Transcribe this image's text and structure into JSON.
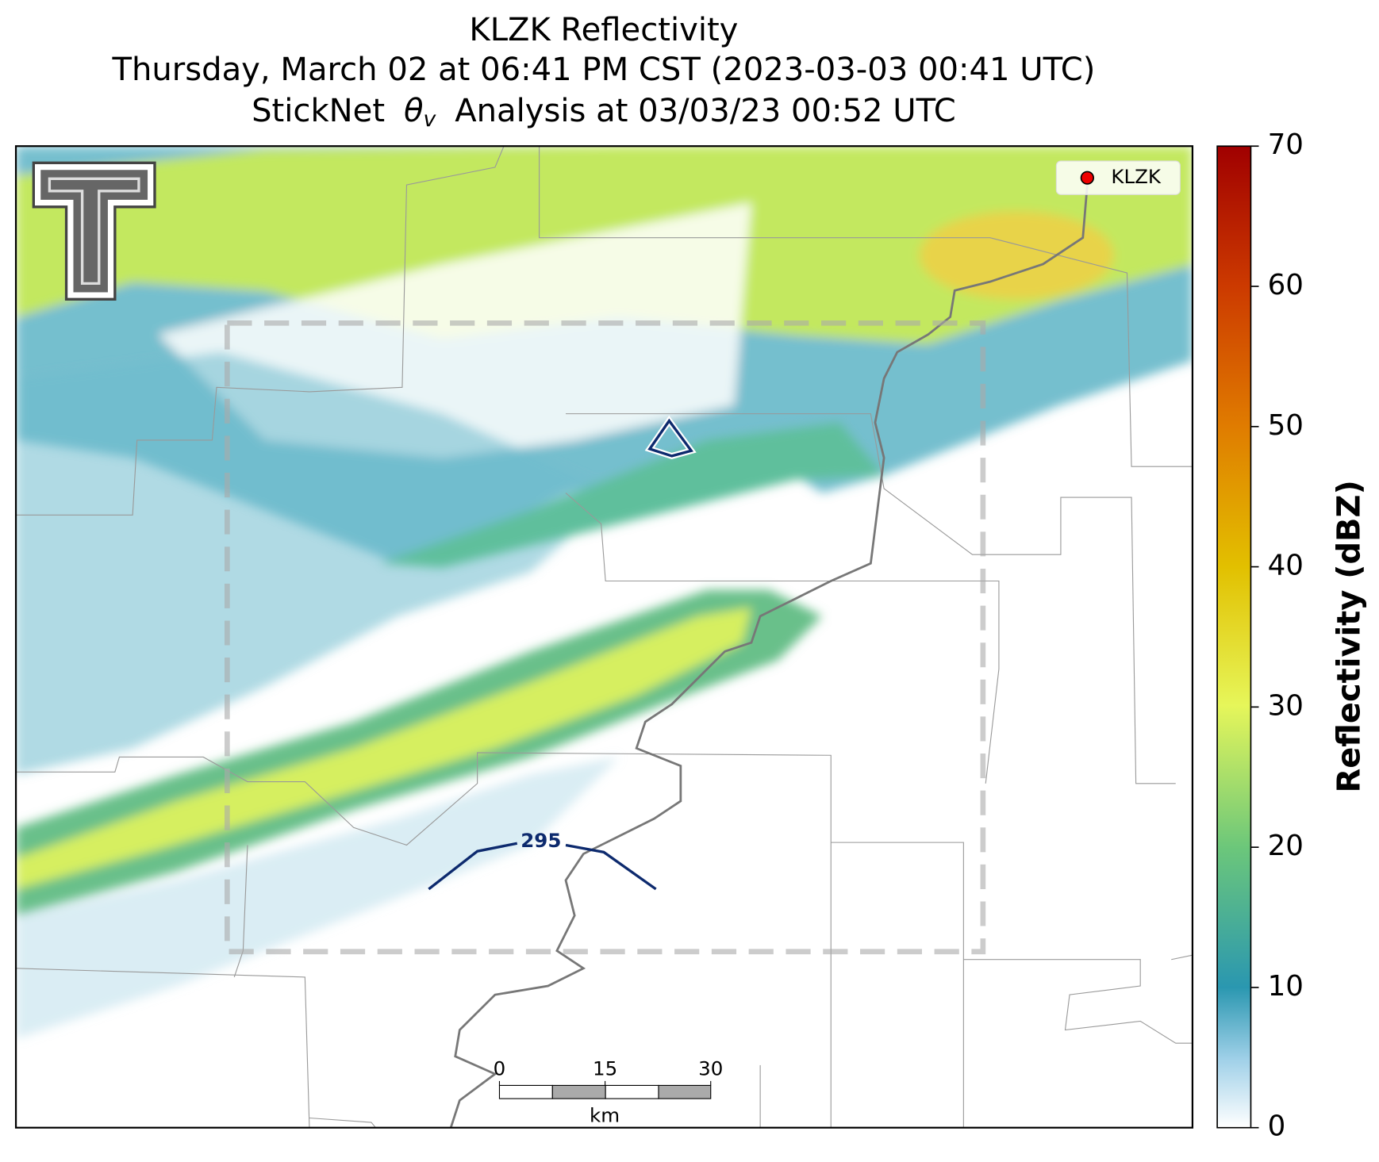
{
  "title": {
    "line1": "KLZK Reflectivity",
    "line2": "Thursday, March 02 at 06:41 PM CST (2023-03-03 00:41 UTC)",
    "line3": {
      "before": "StickNet",
      "symbol": "θ",
      "subscript": "v",
      "after": "Analysis at 03/03/23 00:52 UTC"
    }
  },
  "legend": {
    "label": "KLZK"
  },
  "contour": {
    "label": "295"
  },
  "scale_bar": {
    "ticks": [
      0,
      15,
      30
    ],
    "unit": "km"
  },
  "colorbar": {
    "label": "Reflectivity (dBZ)",
    "lim": [
      0,
      70
    ],
    "ticks": [
      0,
      10,
      20,
      30,
      40,
      50,
      60,
      70
    ]
  }
}
